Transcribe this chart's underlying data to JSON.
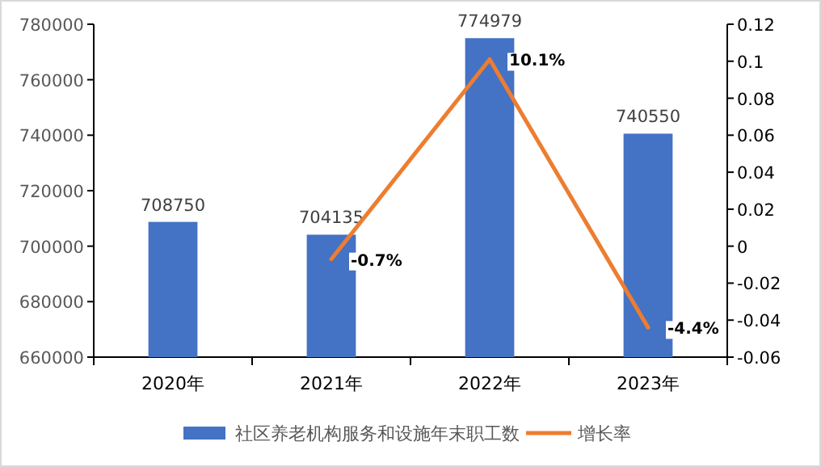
{
  "chart_data": {
    "type": "bar",
    "categories": [
      "2020年",
      "2021年",
      "2022年",
      "2023年"
    ],
    "series": [
      {
        "name": "社区养老机构服务和设施年末职工数",
        "color": "#4472c4",
        "values": [
          708750,
          704135,
          774979,
          740550
        ],
        "value_labels": [
          "708750",
          "704135",
          "774979",
          "740550"
        ]
      },
      {
        "name": "增长率",
        "type": "line",
        "axis": "y2",
        "color": "#ed7d31",
        "values": [
          null,
          -0.007,
          0.101,
          -0.044
        ],
        "value_labels": [
          null,
          "-0.7%",
          "10.1%",
          "-4.4%"
        ]
      }
    ],
    "ylim": [
      660000,
      780000
    ],
    "yticks": [
      660000,
      680000,
      700000,
      720000,
      740000,
      760000,
      780000
    ],
    "y2lim": [
      -0.06,
      0.12
    ],
    "y2ticks": [
      -0.06,
      -0.04,
      -0.02,
      0,
      0.02,
      0.04,
      0.06,
      0.08,
      0.1,
      0.12
    ],
    "grid": false,
    "legend": "bottom",
    "marker": "none",
    "line_style": "solid"
  }
}
